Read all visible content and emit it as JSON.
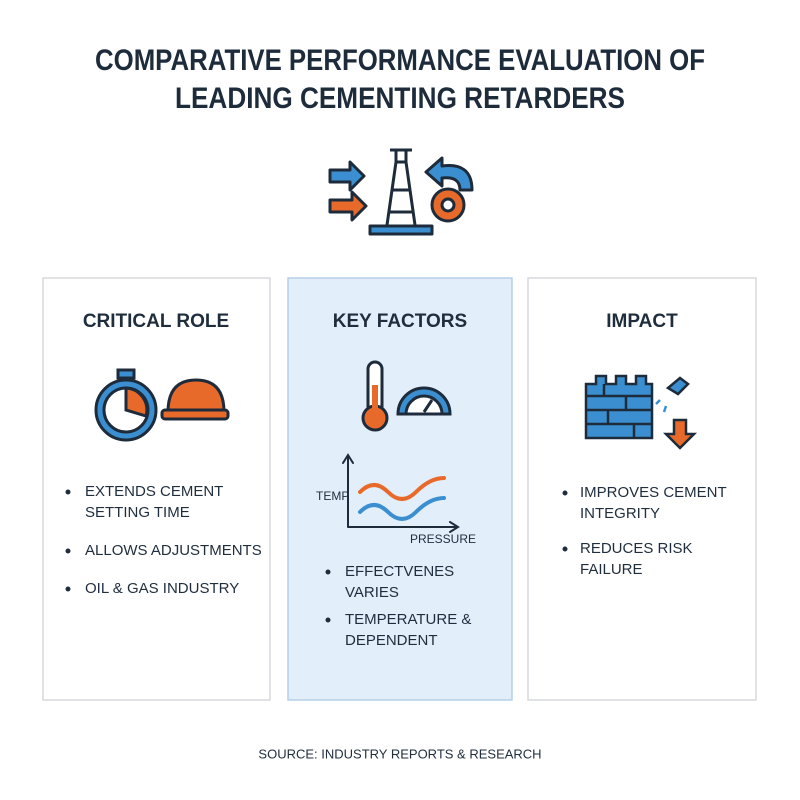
{
  "header": {
    "title_lines": [
      "COMPARATIVE PERFORMANCE EVALUATION OF",
      "LEADING CEMENTING RETARDERS"
    ]
  },
  "panels": [
    {
      "heading": "CRITICAL ROLE",
      "bullets": [
        [
          "EXTENDS CEMENT",
          "SETTING TIME"
        ],
        [
          "ALLOWS ADJUSTMENTS"
        ],
        [
          "OIL & GAS INDUSTRY"
        ]
      ]
    },
    {
      "heading": "KEY FACTORS",
      "graph": {
        "y_label": "TEMP",
        "x_label": "PRESSURE"
      },
      "bullets": [
        [
          "EFFECTVENES",
          "VARIES"
        ],
        [
          "TEMPERATURE &",
          "DEPENDENT"
        ]
      ]
    },
    {
      "heading": "IMPACT",
      "bullets": [
        [
          "IMPROVES CEMENT",
          "INTEGRITY"
        ],
        [
          "REDUCES RISK",
          "FAILURE"
        ]
      ]
    }
  ],
  "footer": {
    "source": "SOURCE: INDUSTRY REPORTS & RESEARCH"
  }
}
